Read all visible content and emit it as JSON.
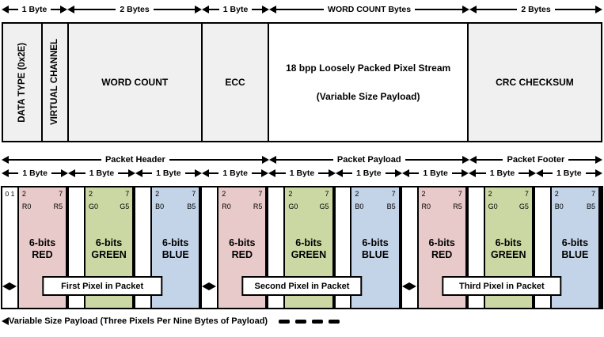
{
  "top_arrows": [
    {
      "label": "1 Byte"
    },
    {
      "label": "2 Bytes"
    },
    {
      "label": "1 Byte"
    },
    {
      "label": "WORD COUNT Bytes"
    },
    {
      "label": "2 Bytes"
    }
  ],
  "packet_fields": {
    "data_type": "DATA TYPE (0x2E)",
    "virtual_channel": "VIRTUAL CHANNEL",
    "word_count": "WORD COUNT",
    "ecc": "ECC",
    "payload_line1": "18 bpp Loosely Packed Pixel Stream",
    "payload_line2": "(Variable Size Payload)",
    "crc": "CRC CHECKSUM"
  },
  "section_arrows": [
    {
      "label": "Packet Header"
    },
    {
      "label": "Packet Payload"
    },
    {
      "label": "Packet Footer"
    }
  ],
  "byte_arrow_label": "1 Byte",
  "first_bits_label": "0 1",
  "byte_cells": [
    {
      "bit_start": "2",
      "bit_end": "7",
      "comp_start": "R0",
      "comp_end": "R5",
      "size": "6-bits",
      "color_name": "RED",
      "color": "red"
    },
    {
      "bit_start": "2",
      "bit_end": "7",
      "comp_start": "G0",
      "comp_end": "G5",
      "size": "6-bits",
      "color_name": "GREEN",
      "color": "green"
    },
    {
      "bit_start": "2",
      "bit_end": "7",
      "comp_start": "B0",
      "comp_end": "B5",
      "size": "6-bits",
      "color_name": "BLUE",
      "color": "blue"
    },
    {
      "bit_start": "2",
      "bit_end": "7",
      "comp_start": "R0",
      "comp_end": "R5",
      "size": "6-bits",
      "color_name": "RED",
      "color": "red"
    },
    {
      "bit_start": "2",
      "bit_end": "7",
      "comp_start": "G0",
      "comp_end": "G5",
      "size": "6-bits",
      "color_name": "GREEN",
      "color": "green"
    },
    {
      "bit_start": "2",
      "bit_end": "7",
      "comp_start": "B0",
      "comp_end": "B5",
      "size": "6-bits",
      "color_name": "BLUE",
      "color": "blue"
    },
    {
      "bit_start": "2",
      "bit_end": "7",
      "comp_start": "R0",
      "comp_end": "R5",
      "size": "6-bits",
      "color_name": "RED",
      "color": "red"
    },
    {
      "bit_start": "2",
      "bit_end": "7",
      "comp_start": "G0",
      "comp_end": "G5",
      "size": "6-bits",
      "color_name": "GREEN",
      "color": "green"
    },
    {
      "bit_start": "2",
      "bit_end": "7",
      "comp_start": "B0",
      "comp_end": "B5",
      "size": "6-bits",
      "color_name": "BLUE",
      "color": "blue"
    }
  ],
  "pixel_groups": [
    {
      "label": "First Pixel in Packet"
    },
    {
      "label": "Second Pixel in Packet"
    },
    {
      "label": "Third Pixel in Packet"
    }
  ],
  "bottom_label": "Variable Size Payload (Three Pixels Per Nine Bytes of Payload)",
  "colors": {
    "red_fill": "#e9caca",
    "green_fill": "#cbd8a4",
    "blue_fill": "#c3d3e8",
    "gray_fill": "#f0f0f0",
    "white_fill": "#ffffff",
    "line": "#000000"
  }
}
